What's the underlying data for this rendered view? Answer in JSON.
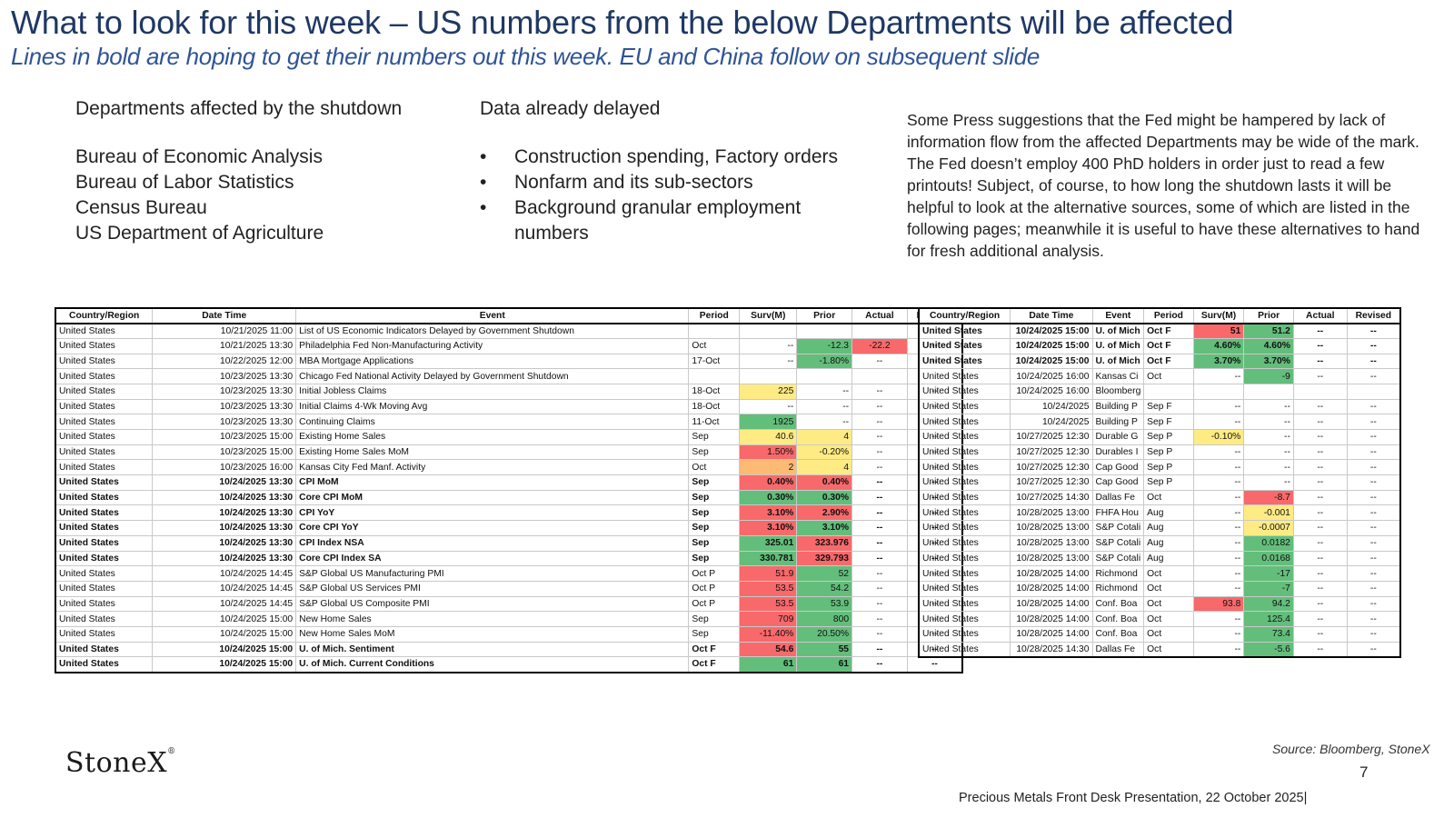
{
  "header": {
    "title": "What to look for this week – US numbers from the below Departments will be affected",
    "subtitle": "Lines in bold are hoping to get their numbers out this week.  EU and China follow on subsequent slide"
  },
  "departments": {
    "heading": "Departments affected by the shutdown",
    "items": [
      "Bureau of Economic Analysis",
      "Bureau of Labor Statistics",
      "Census Bureau",
      "US Department of Agriculture"
    ]
  },
  "delayed": {
    "heading": "Data already delayed",
    "items": [
      "Construction spending, Factory orders",
      "Nonfarm and its sub-sectors",
      "Background granular employment numbers"
    ]
  },
  "note": "Some Press suggestions that the Fed might be hampered by lack of information flow from the affected Departments may be wide of the mark.  The Fed doesn’t employ 400 PhD holders in order just to read a few printouts!  Subject, of course, to how long the shutdown lasts it will be helpful to look at the alternative sources, some of which are listed in the following pages; meanwhile it is useful to have these alternatives to hand for fresh additional analysis.",
  "table_left": {
    "columns": [
      "Country/Region",
      "Date Time",
      "Event",
      "Period",
      "Surv(M)",
      "Prior",
      "Actual",
      "Revised"
    ],
    "rows": [
      {
        "bold": false,
        "cells": [
          "United States",
          "10/21/2025 11:00",
          "List of US Economic Indicators Delayed by Government Shutdown",
          "",
          "",
          "",
          "",
          ""
        ],
        "colors": [
          "",
          "",
          "",
          "",
          "",
          "",
          "",
          ""
        ]
      },
      {
        "bold": false,
        "cells": [
          "United States",
          "10/21/2025 13:30",
          "Philadelphia Fed Non-Manufacturing Activity",
          "Oct",
          "--",
          "-12.3",
          "-22.2",
          "--"
        ],
        "colors": [
          "",
          "",
          "",
          "",
          "",
          "g",
          "rd",
          ""
        ]
      },
      {
        "bold": false,
        "cells": [
          "United States",
          "10/22/2025 12:00",
          "MBA Mortgage Applications",
          "17-Oct",
          "--",
          "-1.80%",
          "--",
          "--"
        ],
        "colors": [
          "",
          "",
          "",
          "",
          "",
          "g",
          "",
          ""
        ]
      },
      {
        "bold": false,
        "cells": [
          "United States",
          "10/23/2025 13:30",
          "Chicago Fed National Activity Delayed by Government Shutdown",
          "",
          "",
          "",
          "",
          ""
        ],
        "colors": [
          "",
          "",
          "",
          "",
          "",
          "",
          "",
          ""
        ]
      },
      {
        "bold": false,
        "cells": [
          "United States",
          "10/23/2025 13:30",
          "Initial Jobless Claims",
          "18-Oct",
          "225",
          "--",
          "--",
          "--"
        ],
        "colors": [
          "",
          "",
          "",
          "",
          "y",
          "",
          "",
          ""
        ]
      },
      {
        "bold": false,
        "cells": [
          "United States",
          "10/23/2025 13:30",
          "Initial Claims 4-Wk Moving Avg",
          "18-Oct",
          "--",
          "--",
          "--",
          "--"
        ],
        "colors": [
          "",
          "",
          "",
          "",
          "",
          "",
          "",
          ""
        ]
      },
      {
        "bold": false,
        "cells": [
          "United States",
          "10/23/2025 13:30",
          "Continuing Claims",
          "11-Oct",
          "1925",
          "--",
          "--",
          "--"
        ],
        "colors": [
          "",
          "",
          "",
          "",
          "g",
          "",
          "",
          ""
        ]
      },
      {
        "bold": false,
        "cells": [
          "United States",
          "10/23/2025 15:00",
          "Existing Home Sales",
          "Sep",
          "40.6",
          "4",
          "--",
          "--"
        ],
        "colors": [
          "",
          "",
          "",
          "",
          "y",
          "y",
          "",
          ""
        ]
      },
      {
        "bold": false,
        "cells": [
          "United States",
          "10/23/2025 15:00",
          "Existing Home Sales MoM",
          "Sep",
          "1.50%",
          "-0.20%",
          "--",
          "--"
        ],
        "colors": [
          "",
          "",
          "",
          "",
          "rd",
          "y",
          "",
          ""
        ]
      },
      {
        "bold": false,
        "cells": [
          "United States",
          "10/23/2025 16:00",
          "Kansas City Fed Manf. Activity",
          "Oct",
          "2",
          "4",
          "--",
          "--"
        ],
        "colors": [
          "",
          "",
          "",
          "",
          "o",
          "y",
          "",
          ""
        ]
      },
      {
        "bold": true,
        "cells": [
          "United States",
          "10/24/2025 13:30",
          "CPI MoM",
          "Sep",
          "0.40%",
          "0.40%",
          "--",
          "--"
        ],
        "colors": [
          "",
          "",
          "",
          "",
          "rd",
          "rd",
          "",
          ""
        ]
      },
      {
        "bold": true,
        "cells": [
          "United States",
          "10/24/2025 13:30",
          "Core CPI MoM",
          "Sep",
          "0.30%",
          "0.30%",
          "--",
          "--"
        ],
        "colors": [
          "",
          "",
          "",
          "",
          "g",
          "g",
          "",
          ""
        ]
      },
      {
        "bold": true,
        "cells": [
          "United States",
          "10/24/2025 13:30",
          "CPI YoY",
          "Sep",
          "3.10%",
          "2.90%",
          "--",
          "--"
        ],
        "colors": [
          "",
          "",
          "",
          "",
          "rd",
          "rd",
          "",
          ""
        ]
      },
      {
        "bold": true,
        "cells": [
          "United States",
          "10/24/2025 13:30",
          "Core CPI YoY",
          "Sep",
          "3.10%",
          "3.10%",
          "--",
          "--"
        ],
        "colors": [
          "",
          "",
          "",
          "",
          "rd",
          "g",
          "",
          ""
        ]
      },
      {
        "bold": true,
        "cells": [
          "United States",
          "10/24/2025 13:30",
          "CPI Index NSA",
          "Sep",
          "325.01",
          "323.976",
          "--",
          "--"
        ],
        "colors": [
          "",
          "",
          "",
          "",
          "g",
          "rd",
          "",
          ""
        ]
      },
      {
        "bold": true,
        "cells": [
          "United States",
          "10/24/2025 13:30",
          "Core CPI Index SA",
          "Sep",
          "330.781",
          "329.793",
          "--",
          "--"
        ],
        "colors": [
          "",
          "",
          "",
          "",
          "g",
          "rd",
          "",
          ""
        ]
      },
      {
        "bold": false,
        "cells": [
          "United States",
          "10/24/2025 14:45",
          "S&P Global US Manufacturing PMI",
          "Oct P",
          "51.9",
          "52",
          "--",
          "--"
        ],
        "colors": [
          "",
          "",
          "",
          "",
          "rd",
          "g",
          "",
          ""
        ]
      },
      {
        "bold": false,
        "cells": [
          "United States",
          "10/24/2025 14:45",
          "S&P Global US Services PMI",
          "Oct P",
          "53.5",
          "54.2",
          "--",
          "--"
        ],
        "colors": [
          "",
          "",
          "",
          "",
          "rd",
          "g",
          "",
          ""
        ]
      },
      {
        "bold": false,
        "cells": [
          "United States",
          "10/24/2025 14:45",
          "S&P Global US Composite PMI",
          "Oct P",
          "53.5",
          "53.9",
          "--",
          "--"
        ],
        "colors": [
          "",
          "",
          "",
          "",
          "rd",
          "g",
          "",
          ""
        ]
      },
      {
        "bold": false,
        "cells": [
          "United States",
          "10/24/2025 15:00",
          "New Home Sales",
          "Sep",
          "709",
          "800",
          "--",
          "--"
        ],
        "colors": [
          "",
          "",
          "",
          "",
          "rd",
          "g",
          "",
          ""
        ]
      },
      {
        "bold": false,
        "cells": [
          "United States",
          "10/24/2025 15:00",
          "New Home Sales MoM",
          "Sep",
          "-11.40%",
          "20.50%",
          "--",
          "--"
        ],
        "colors": [
          "",
          "",
          "",
          "",
          "rd",
          "g",
          "",
          ""
        ]
      },
      {
        "bold": true,
        "cells": [
          "United States",
          "10/24/2025 15:00",
          "U. of Mich. Sentiment",
          "Oct F",
          "54.6",
          "55",
          "--",
          "--"
        ],
        "colors": [
          "",
          "",
          "",
          "",
          "rd",
          "g",
          "",
          ""
        ]
      },
      {
        "bold": true,
        "cells": [
          "United States",
          "10/24/2025 15:00",
          "U. of Mich. Current Conditions",
          "Oct F",
          "61",
          "61",
          "--",
          "--"
        ],
        "colors": [
          "",
          "",
          "",
          "",
          "g",
          "g",
          "",
          ""
        ]
      }
    ]
  },
  "table_right": {
    "columns": [
      "Country/Region",
      "Date Time",
      "Event",
      "Period",
      "Surv(M)",
      "Prior",
      "Actual",
      "Revised"
    ],
    "rows": [
      {
        "bold": true,
        "cells": [
          "United States",
          "10/24/2025 15:00",
          "U. of Mich",
          "Oct F",
          "51",
          "51.2",
          "--",
          "--"
        ],
        "colors": [
          "",
          "",
          "",
          "",
          "rd",
          "g",
          "",
          ""
        ]
      },
      {
        "bold": true,
        "cells": [
          "United States",
          "10/24/2025 15:00",
          "U. of Mich",
          "Oct F",
          "4.60%",
          "4.60%",
          "--",
          "--"
        ],
        "colors": [
          "",
          "",
          "",
          "",
          "g",
          "g",
          "",
          ""
        ]
      },
      {
        "bold": true,
        "cells": [
          "United States",
          "10/24/2025 15:00",
          "U. of Mich",
          "Oct F",
          "3.70%",
          "3.70%",
          "--",
          "--"
        ],
        "colors": [
          "",
          "",
          "",
          "",
          "g",
          "g",
          "",
          ""
        ]
      },
      {
        "bold": false,
        "cells": [
          "United States",
          "10/24/2025 16:00",
          "Kansas Ci",
          "Oct",
          "--",
          "-9",
          "--",
          "--"
        ],
        "colors": [
          "",
          "",
          "",
          "",
          "",
          "g",
          "",
          ""
        ]
      },
      {
        "bold": false,
        "cells": [
          "United States",
          "10/24/2025 16:00",
          "Bloomberg Oct. Unit",
          "",
          "",
          "",
          "",
          ""
        ],
        "colors": [
          "",
          "",
          "",
          "",
          "",
          "",
          "",
          ""
        ]
      },
      {
        "bold": false,
        "cells": [
          "United States",
          "10/24/2025",
          "Building P",
          "Sep F",
          "--",
          "--",
          "--",
          "--"
        ],
        "colors": [
          "",
          "",
          "",
          "",
          "",
          "",
          "",
          ""
        ]
      },
      {
        "bold": false,
        "cells": [
          "United States",
          "10/24/2025",
          "Building P",
          "Sep F",
          "--",
          "--",
          "--",
          "--"
        ],
        "colors": [
          "",
          "",
          "",
          "",
          "",
          "",
          "",
          ""
        ]
      },
      {
        "bold": false,
        "cells": [
          "United States",
          "10/27/2025 12:30",
          "Durable G",
          "Sep P",
          "-0.10%",
          "--",
          "--",
          "--"
        ],
        "colors": [
          "",
          "",
          "",
          "",
          "y",
          "",
          "",
          ""
        ]
      },
      {
        "bold": false,
        "cells": [
          "United States",
          "10/27/2025 12:30",
          "Durables I",
          "Sep P",
          "--",
          "--",
          "--",
          "--"
        ],
        "colors": [
          "",
          "",
          "",
          "",
          "",
          "",
          "",
          ""
        ]
      },
      {
        "bold": false,
        "cells": [
          "United States",
          "10/27/2025 12:30",
          "Cap Good",
          "Sep P",
          "--",
          "--",
          "--",
          "--"
        ],
        "colors": [
          "",
          "",
          "",
          "",
          "",
          "",
          "",
          ""
        ]
      },
      {
        "bold": false,
        "cells": [
          "United States",
          "10/27/2025 12:30",
          "Cap Good",
          "Sep P",
          "--",
          "--",
          "--",
          "--"
        ],
        "colors": [
          "",
          "",
          "",
          "",
          "",
          "",
          "",
          ""
        ]
      },
      {
        "bold": false,
        "cells": [
          "United States",
          "10/27/2025 14:30",
          "Dallas Fe",
          "Oct",
          "--",
          "-8.7",
          "--",
          "--"
        ],
        "colors": [
          "",
          "",
          "",
          "",
          "",
          "rd",
          "",
          ""
        ]
      },
      {
        "bold": false,
        "cells": [
          "United States",
          "10/28/2025 13:00",
          "FHFA Hou",
          "Aug",
          "--",
          "-0.001",
          "--",
          "--"
        ],
        "colors": [
          "",
          "",
          "",
          "",
          "",
          "y",
          "",
          ""
        ]
      },
      {
        "bold": false,
        "cells": [
          "United States",
          "10/28/2025 13:00",
          "S&P Cotali",
          "Aug",
          "--",
          "-0.0007",
          "--",
          "--"
        ],
        "colors": [
          "",
          "",
          "",
          "",
          "",
          "y",
          "",
          ""
        ]
      },
      {
        "bold": false,
        "cells": [
          "United States",
          "10/28/2025 13:00",
          "S&P Cotali",
          "Aug",
          "--",
          "0.0182",
          "--",
          "--"
        ],
        "colors": [
          "",
          "",
          "",
          "",
          "",
          "g",
          "",
          ""
        ]
      },
      {
        "bold": false,
        "cells": [
          "United States",
          "10/28/2025 13:00",
          "S&P Cotali",
          "Aug",
          "--",
          "0.0168",
          "--",
          "--"
        ],
        "colors": [
          "",
          "",
          "",
          "",
          "",
          "g",
          "",
          ""
        ]
      },
      {
        "bold": false,
        "cells": [
          "United States",
          "10/28/2025 14:00",
          "Richmond",
          "Oct",
          "--",
          "-17",
          "--",
          "--"
        ],
        "colors": [
          "",
          "",
          "",
          "",
          "",
          "g",
          "",
          ""
        ]
      },
      {
        "bold": false,
        "cells": [
          "United States",
          "10/28/2025 14:00",
          "Richmond",
          "Oct",
          "--",
          "-7",
          "--",
          "--"
        ],
        "colors": [
          "",
          "",
          "",
          "",
          "",
          "g",
          "",
          ""
        ]
      },
      {
        "bold": false,
        "cells": [
          "United States",
          "10/28/2025 14:00",
          "Conf. Boa",
          "Oct",
          "93.8",
          "94.2",
          "--",
          "--"
        ],
        "colors": [
          "",
          "",
          "",
          "",
          "rd",
          "g",
          "",
          ""
        ]
      },
      {
        "bold": false,
        "cells": [
          "United States",
          "10/28/2025 14:00",
          "Conf. Boa",
          "Oct",
          "--",
          "125.4",
          "--",
          "--"
        ],
        "colors": [
          "",
          "",
          "",
          "",
          "",
          "g",
          "",
          ""
        ]
      },
      {
        "bold": false,
        "cells": [
          "United States",
          "10/28/2025 14:00",
          "Conf. Boa",
          "Oct",
          "--",
          "73.4",
          "--",
          "--"
        ],
        "colors": [
          "",
          "",
          "",
          "",
          "",
          "g",
          "",
          ""
        ]
      },
      {
        "bold": false,
        "cells": [
          "United States",
          "10/28/2025 14:30",
          "Dallas Fe",
          "Oct",
          "--",
          "-5.6",
          "--",
          "--"
        ],
        "colors": [
          "",
          "",
          "",
          "",
          "",
          "g",
          "",
          ""
        ]
      }
    ]
  },
  "footer": {
    "logo": "StoneX",
    "logo_mark": "®",
    "source": "Source: Bloomberg, StoneX",
    "page_number": "7",
    "presentation": "Precious Metals Front Desk Presentation, 22 October 2025|"
  }
}
